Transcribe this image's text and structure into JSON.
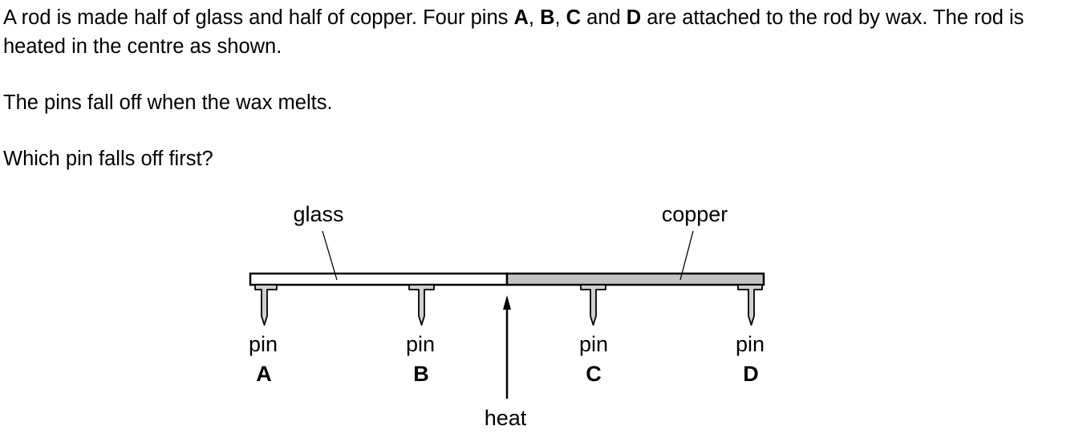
{
  "question": {
    "para1": {
      "t1": "A rod is made half of glass and half of copper. Four pins ",
      "pin_a": "A",
      "sep1": ", ",
      "pin_b": "B",
      "sep2": ", ",
      "pin_c": "C",
      "sep3": " and ",
      "pin_d": "D",
      "t2": " are attached to the rod by wax. The rod is heated in the centre as shown."
    },
    "para2": "The pins fall off when the wax melts.",
    "para3": "Which pin falls off first?"
  },
  "diagram": {
    "glass_label": "glass",
    "copper_label": "copper",
    "heat_label": "heat",
    "pins": [
      {
        "word": "pin",
        "letter": "A"
      },
      {
        "word": "pin",
        "letter": "B"
      },
      {
        "word": "pin",
        "letter": "C"
      },
      {
        "word": "pin",
        "letter": "D"
      }
    ],
    "colors": {
      "glass": "#ffffff",
      "copper": "#c4c4c4",
      "pin": "#d0d0d0",
      "stroke": "#000000"
    }
  }
}
